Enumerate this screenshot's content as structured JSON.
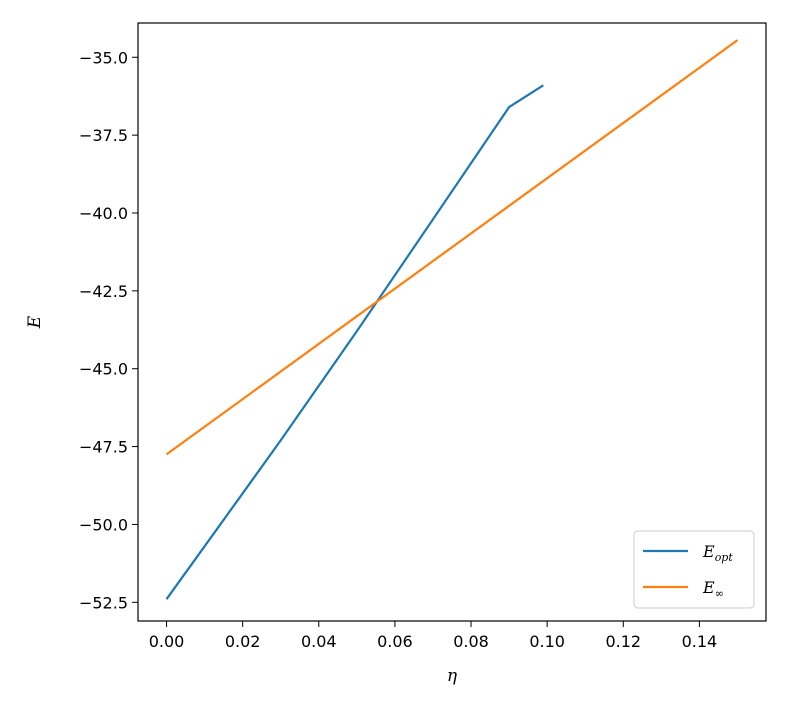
{
  "chart_data": {
    "type": "line",
    "xlabel": "η",
    "ylabel": "E",
    "xlim": [
      -0.0075,
      0.1575
    ],
    "ylim": [
      -53.1,
      -33.9
    ],
    "xticks": [
      0.0,
      0.02,
      0.04,
      0.06,
      0.08,
      0.1,
      0.12,
      0.14
    ],
    "xtick_labels": [
      "0.00",
      "0.02",
      "0.04",
      "0.06",
      "0.08",
      "0.10",
      "0.12",
      "0.14"
    ],
    "yticks": [
      -35.0,
      -37.5,
      -40.0,
      -42.5,
      -45.0,
      -47.5,
      -50.0,
      -52.5
    ],
    "ytick_labels": [
      "−35.0",
      "−37.5",
      "−40.0",
      "−42.5",
      "−45.0",
      "−47.5",
      "−50.0",
      "−52.5"
    ],
    "grid": false,
    "legend_position": "bottom-right",
    "series": [
      {
        "name": "E",
        "name_sub": "opt",
        "color": "#1f77b4",
        "x": [
          0.0,
          0.01,
          0.02,
          0.03,
          0.04,
          0.05,
          0.06,
          0.07,
          0.08,
          0.09,
          0.099
        ],
        "y": [
          -52.4,
          -50.7,
          -49.0,
          -47.3,
          -45.55,
          -43.8,
          -42.0,
          -40.2,
          -38.4,
          -36.6,
          -35.9
        ]
      },
      {
        "name": "E",
        "name_sub": "∞",
        "color": "#ff7f0e",
        "x": [
          0.0,
          0.15
        ],
        "y": [
          -47.75,
          -34.45
        ]
      }
    ]
  }
}
